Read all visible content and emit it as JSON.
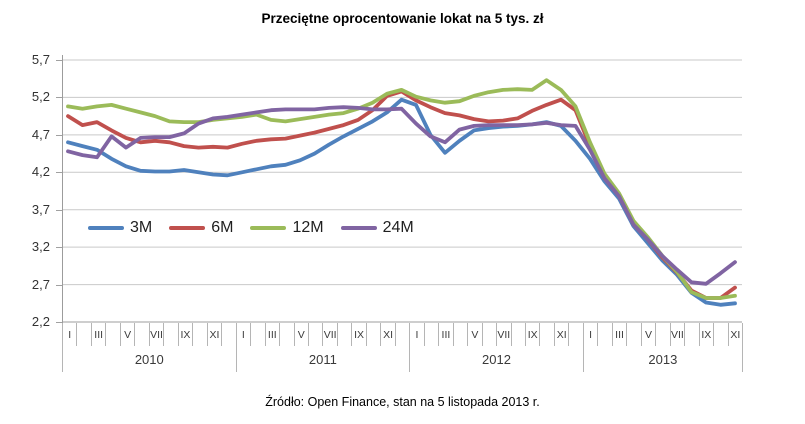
{
  "title": "Przeciętne oprocentowanie lokat na 5 tys. zł",
  "source": "Źródło: Open Finance, stan na 5 listopada 2013 r.",
  "chart_data": {
    "type": "line",
    "title": "Przeciętne oprocentowanie lokat na 5 tys. zł",
    "ylim": [
      2.2,
      5.7
    ],
    "y_major_step": 0.5,
    "grid": true,
    "legend_position": "inside-middle-left",
    "y_ticks": [
      "5,7",
      "5,2",
      "4,7",
      "4,2",
      "3,7",
      "3,2",
      "2,7",
      "2,2"
    ],
    "month_labels": [
      "I",
      "III",
      "V",
      "VII",
      "IX",
      "XI"
    ],
    "years": [
      {
        "label": "2010",
        "months": 12
      },
      {
        "label": "2011",
        "months": 12
      },
      {
        "label": "2012",
        "months": 12
      },
      {
        "label": "2013",
        "months": 11
      }
    ],
    "axis_colors": {
      "gridline": "#c9c9c9",
      "axis": "#9c9c9c",
      "tick": "#b5b5b5"
    },
    "series": [
      {
        "name": "3M",
        "color": "#4F81BD",
        "values": [
          4.6,
          4.55,
          4.5,
          4.38,
          4.28,
          4.22,
          4.21,
          4.21,
          4.23,
          4.2,
          4.17,
          4.16,
          4.2,
          4.24,
          4.28,
          4.3,
          4.36,
          4.45,
          4.57,
          4.68,
          4.78,
          4.88,
          5.0,
          5.17,
          5.1,
          4.7,
          4.46,
          4.62,
          4.76,
          4.79,
          4.81,
          4.82,
          4.84,
          4.87,
          4.82,
          4.62,
          4.38,
          4.08,
          3.85,
          3.48,
          3.25,
          3.02,
          2.83,
          2.59,
          2.46,
          2.43,
          2.45
        ]
      },
      {
        "name": "6M",
        "color": "#C0504D",
        "values": [
          4.95,
          4.83,
          4.87,
          4.76,
          4.66,
          4.6,
          4.62,
          4.6,
          4.55,
          4.53,
          4.54,
          4.53,
          4.58,
          4.62,
          4.64,
          4.65,
          4.69,
          4.73,
          4.78,
          4.83,
          4.9,
          5.03,
          5.22,
          5.28,
          5.16,
          5.07,
          4.99,
          4.96,
          4.91,
          4.88,
          4.89,
          4.92,
          5.02,
          5.1,
          5.17,
          5.03,
          4.55,
          4.15,
          3.9,
          3.52,
          3.3,
          3.06,
          2.86,
          2.62,
          2.52,
          2.52,
          2.66
        ]
      },
      {
        "name": "12M",
        "color": "#9BBB59",
        "values": [
          5.08,
          5.05,
          5.08,
          5.1,
          5.05,
          5.0,
          4.95,
          4.88,
          4.87,
          4.87,
          4.9,
          4.92,
          4.94,
          4.97,
          4.9,
          4.88,
          4.91,
          4.94,
          4.97,
          4.99,
          5.05,
          5.13,
          5.25,
          5.3,
          5.21,
          5.16,
          5.13,
          5.15,
          5.22,
          5.27,
          5.3,
          5.31,
          5.3,
          5.43,
          5.3,
          5.08,
          4.6,
          4.18,
          3.92,
          3.55,
          3.33,
          3.08,
          2.87,
          2.6,
          2.52,
          2.52,
          2.55
        ]
      },
      {
        "name": "24M",
        "color": "#8064A2",
        "values": [
          4.48,
          4.43,
          4.4,
          4.68,
          4.53,
          4.66,
          4.67,
          4.67,
          4.72,
          4.85,
          4.92,
          4.94,
          4.97,
          5.0,
          5.03,
          5.04,
          5.04,
          5.04,
          5.06,
          5.07,
          5.06,
          5.04,
          5.04,
          5.05,
          4.85,
          4.68,
          4.6,
          4.77,
          4.82,
          4.83,
          4.83,
          4.83,
          4.84,
          4.86,
          4.83,
          4.82,
          4.5,
          4.12,
          3.88,
          3.5,
          3.3,
          3.08,
          2.9,
          2.73,
          2.71,
          2.85,
          3.0
        ]
      }
    ]
  }
}
